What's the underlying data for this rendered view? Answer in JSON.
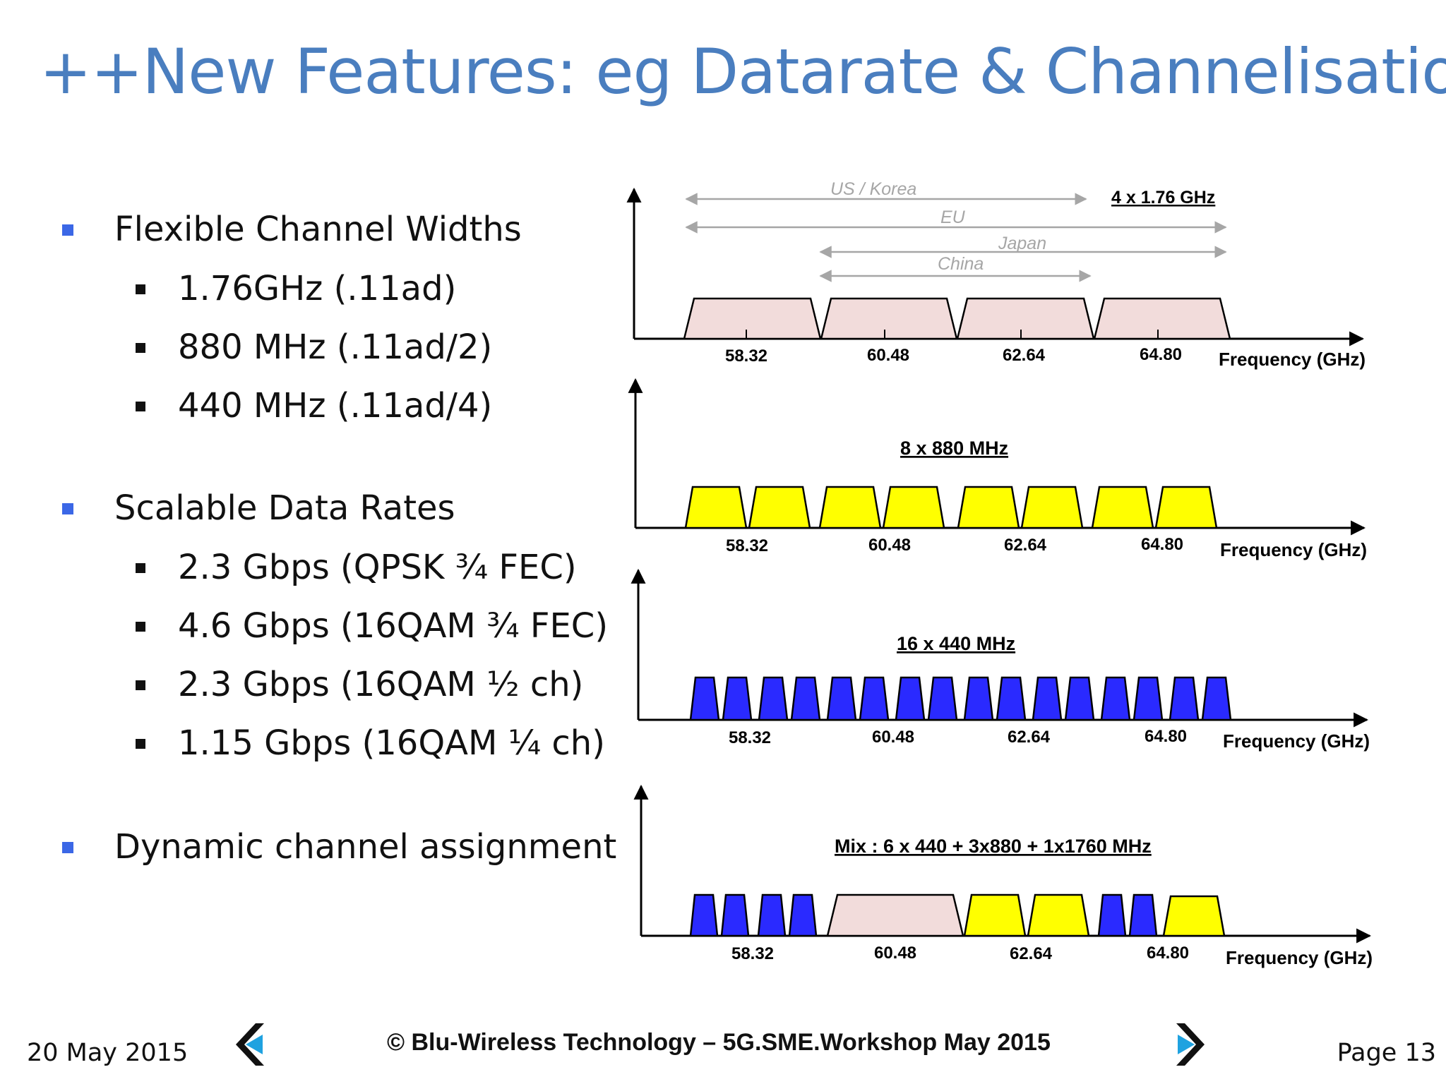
{
  "slide": {
    "title": "++New Features: eg Datarate & Channelisation"
  },
  "bullets": [
    {
      "text": "Flexible Channel Widths",
      "sub": [
        "1.76GHz (.11ad)",
        "880 MHz (.11ad/2)",
        "440 MHz (.11ad/4)"
      ]
    },
    {
      "text": "Scalable Data Rates",
      "sub": [
        "2.3 Gbps (QPSK ¾ FEC)",
        "4.6 Gbps (16QAM ¾ FEC)",
        "2.3 Gbps (16QAM ½ ch)",
        "1.15 Gbps (16QAM ¼ ch)"
      ]
    },
    {
      "text": "Dynamic channel assignment",
      "sub": []
    }
  ],
  "colors": {
    "title": "#4a7ebf",
    "bullet_square": "#3b67e6",
    "ch_1760": "#f2dcdb",
    "ch_880": "#ffff00",
    "ch_440": "#2a2aff",
    "region_arrow": "#a6a6a6"
  },
  "diagrams": {
    "axis_label": "Frequency (GHz)",
    "ticks": [
      "58.32",
      "60.48",
      "62.64",
      "64.80"
    ],
    "panel1": {
      "caption": "4 x 1.76 GHz",
      "regions": [
        "US / Korea",
        "EU",
        "Japan",
        "China"
      ],
      "channels": [
        "1760",
        "1760",
        "1760",
        "1760"
      ]
    },
    "panel2": {
      "caption": "8 x 880 MHz",
      "channels": [
        "880",
        "880",
        "880",
        "880",
        "880",
        "880",
        "880",
        "880"
      ]
    },
    "panel3": {
      "caption": "16 x 440 MHz",
      "channels": [
        "440",
        "440",
        "440",
        "440",
        "440",
        "440",
        "440",
        "440",
        "440",
        "440",
        "440",
        "440",
        "440",
        "440",
        "440",
        "440"
      ]
    },
    "panel4": {
      "caption": "Mix : 6 x 440 + 3x880 + 1x1760 MHz",
      "channels": [
        "440",
        "440",
        "440",
        "440",
        "1760",
        "880",
        "880",
        "440",
        "440",
        "880"
      ]
    }
  },
  "footer": {
    "date": "20 May 2015",
    "copyright": "© Blu-Wireless Technology – 5G.SME.Workshop May  2015",
    "page": "Page 13",
    "prev_icon": "chevron-left-icon",
    "next_icon": "chevron-right-icon"
  }
}
